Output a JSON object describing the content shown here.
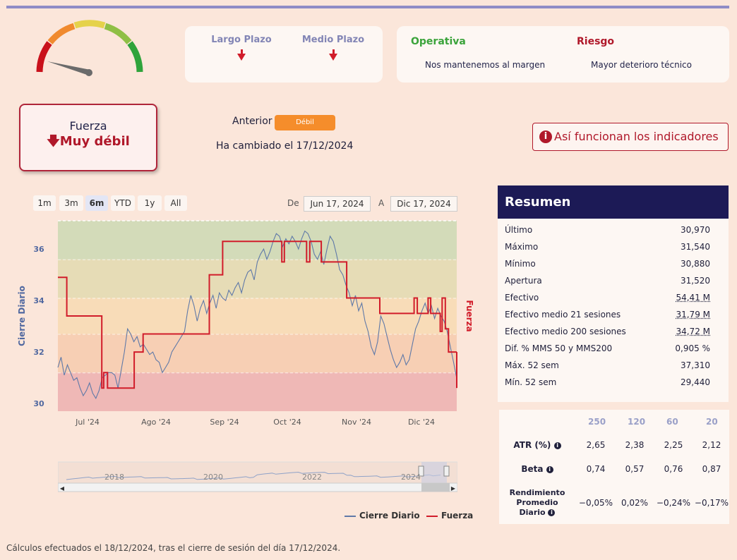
{
  "colors": {
    "accent": "#8f8cc6",
    "red": "#b0182a",
    "orange": "#f58d2b",
    "navy": "#1c1a56",
    "series_price": "#5f79a8",
    "series_fuerza": "#d11c2a"
  },
  "plazo": {
    "largo": "Largo Plazo",
    "medio": "Medio Plazo",
    "largo_icon": "arrow-down-icon",
    "medio_icon": "arrow-down-icon"
  },
  "operativa": {
    "title": "Operativa",
    "text": "Nos mantenemos al margen"
  },
  "riesgo": {
    "title": "Riesgo",
    "text": "Mayor deterioro técnico"
  },
  "fuerza": {
    "label": "Fuerza",
    "value": "Muy débil"
  },
  "anterior": {
    "label": "Anterior",
    "badge": "Débil",
    "cambio": "Ha cambiado el 17/12/2024"
  },
  "info_button": "Así funcionan los indicadores",
  "range": {
    "buttons": [
      "1m",
      "3m",
      "6m",
      "YTD",
      "1y",
      "All"
    ],
    "selected": "6m",
    "from_label": "De",
    "from": "Jun 17, 2024",
    "to_label": "A",
    "to": "Dic 17, 2024"
  },
  "chart_data": {
    "type": "line",
    "ylabel": "Cierre Diario",
    "y2label": "Fuerza",
    "ylim": [
      29.7,
      37.1
    ],
    "yticks": [
      "30",
      "32",
      "34",
      "36"
    ],
    "xticks": [
      "Jul '24",
      "Ago '24",
      "Sep '24",
      "Oct '24",
      "Nov '24",
      "Dic '24"
    ],
    "bands": [
      {
        "from": 29.7,
        "to": 31.2,
        "color": "#efb8b6"
      },
      {
        "from": 31.2,
        "to": 32.7,
        "color": "#f7cfb4"
      },
      {
        "from": 32.7,
        "to": 34.1,
        "color": "#f8dcb8"
      },
      {
        "from": 34.1,
        "to": 35.6,
        "color": "#e6dcb6"
      },
      {
        "from": 35.6,
        "to": 37.1,
        "color": "#d3dbb9"
      }
    ],
    "series": [
      {
        "name": "Cierre Diario",
        "color": "#5f79a8",
        "values": [
          31.4,
          31.8,
          31.1,
          31.5,
          31.2,
          30.9,
          31.0,
          30.6,
          30.3,
          30.5,
          30.8,
          30.4,
          30.2,
          30.5,
          31.0,
          31.1,
          31.2,
          31.2,
          31.1,
          30.6,
          31.3,
          32.0,
          32.9,
          32.7,
          32.4,
          32.6,
          32.2,
          32.3,
          32.1,
          31.9,
          32.0,
          31.7,
          31.6,
          31.2,
          31.4,
          31.6,
          32.0,
          32.2,
          32.4,
          32.6,
          32.8,
          33.6,
          34.2,
          33.8,
          33.2,
          33.7,
          34.0,
          33.5,
          33.9,
          34.2,
          33.7,
          34.3,
          34.1,
          34.0,
          34.4,
          34.2,
          34.5,
          34.7,
          34.3,
          34.8,
          35.1,
          35.2,
          34.8,
          35.5,
          35.8,
          36.0,
          35.6,
          35.9,
          36.3,
          36.6,
          36.5,
          36.1,
          36.4,
          36.2,
          36.5,
          36.3,
          36.0,
          36.4,
          36.7,
          36.6,
          36.3,
          35.8,
          35.6,
          35.9,
          35.4,
          36.0,
          36.5,
          36.3,
          35.8,
          35.2,
          35.0,
          34.6,
          34.3,
          33.8,
          34.2,
          33.6,
          33.9,
          33.2,
          32.8,
          32.2,
          31.9,
          32.4,
          33.4,
          33.1,
          32.6,
          32.1,
          31.7,
          31.4,
          31.6,
          31.9,
          31.5,
          31.7,
          32.3,
          32.9,
          33.2,
          33.6,
          33.9,
          33.5,
          33.8,
          33.3,
          33.7,
          33.4,
          33.2,
          32.8,
          32.2,
          31.6,
          30.97
        ]
      },
      {
        "name": "Fuerza",
        "color": "#d11c2a",
        "shape": "step"
      }
    ]
  },
  "legend": {
    "price": "Cierre Diario",
    "fuerza": "Fuerza"
  },
  "navigator": {
    "years": [
      "2018",
      "2020",
      "2022",
      "2024"
    ]
  },
  "resumen": {
    "title": "Resumen",
    "rows": [
      {
        "label": "Último",
        "value": "30,970"
      },
      {
        "label": "Máximo",
        "value": "31,540"
      },
      {
        "label": "Mínimo",
        "value": "30,880"
      },
      {
        "label": "Apertura",
        "value": "31,520"
      },
      {
        "label": "Efectivo",
        "value": "54,41 M"
      },
      {
        "label": "Efectivo medio 21 sesiones",
        "value": "31,79 M"
      },
      {
        "label": "Efectivo medio 200 sesiones",
        "value": "34,72 M"
      },
      {
        "label": "Dif. % MMS 50 y MMS200",
        "value": "0,905 %"
      },
      {
        "label": "Máx. 52 sem",
        "value": "37,310"
      },
      {
        "label": "Mín. 52 sem",
        "value": "29,440"
      }
    ]
  },
  "atr_table": {
    "headers": [
      "250",
      "120",
      "60",
      "20"
    ],
    "rows": [
      {
        "label": "ATR (%)",
        "values": [
          "2,65",
          "2,38",
          "2,25",
          "2,12"
        ]
      },
      {
        "label": "Beta",
        "values": [
          "0,74",
          "0,57",
          "0,76",
          "0,87"
        ]
      },
      {
        "label": "Rendimiento Promedio Diario",
        "values": [
          "−0,05%",
          "0,02%",
          "−0,24%",
          "−0,17%"
        ]
      }
    ]
  },
  "footnote": "Cálculos efectuados el 18/12/2024, tras el cierre de sesión del día 17/12/2024."
}
